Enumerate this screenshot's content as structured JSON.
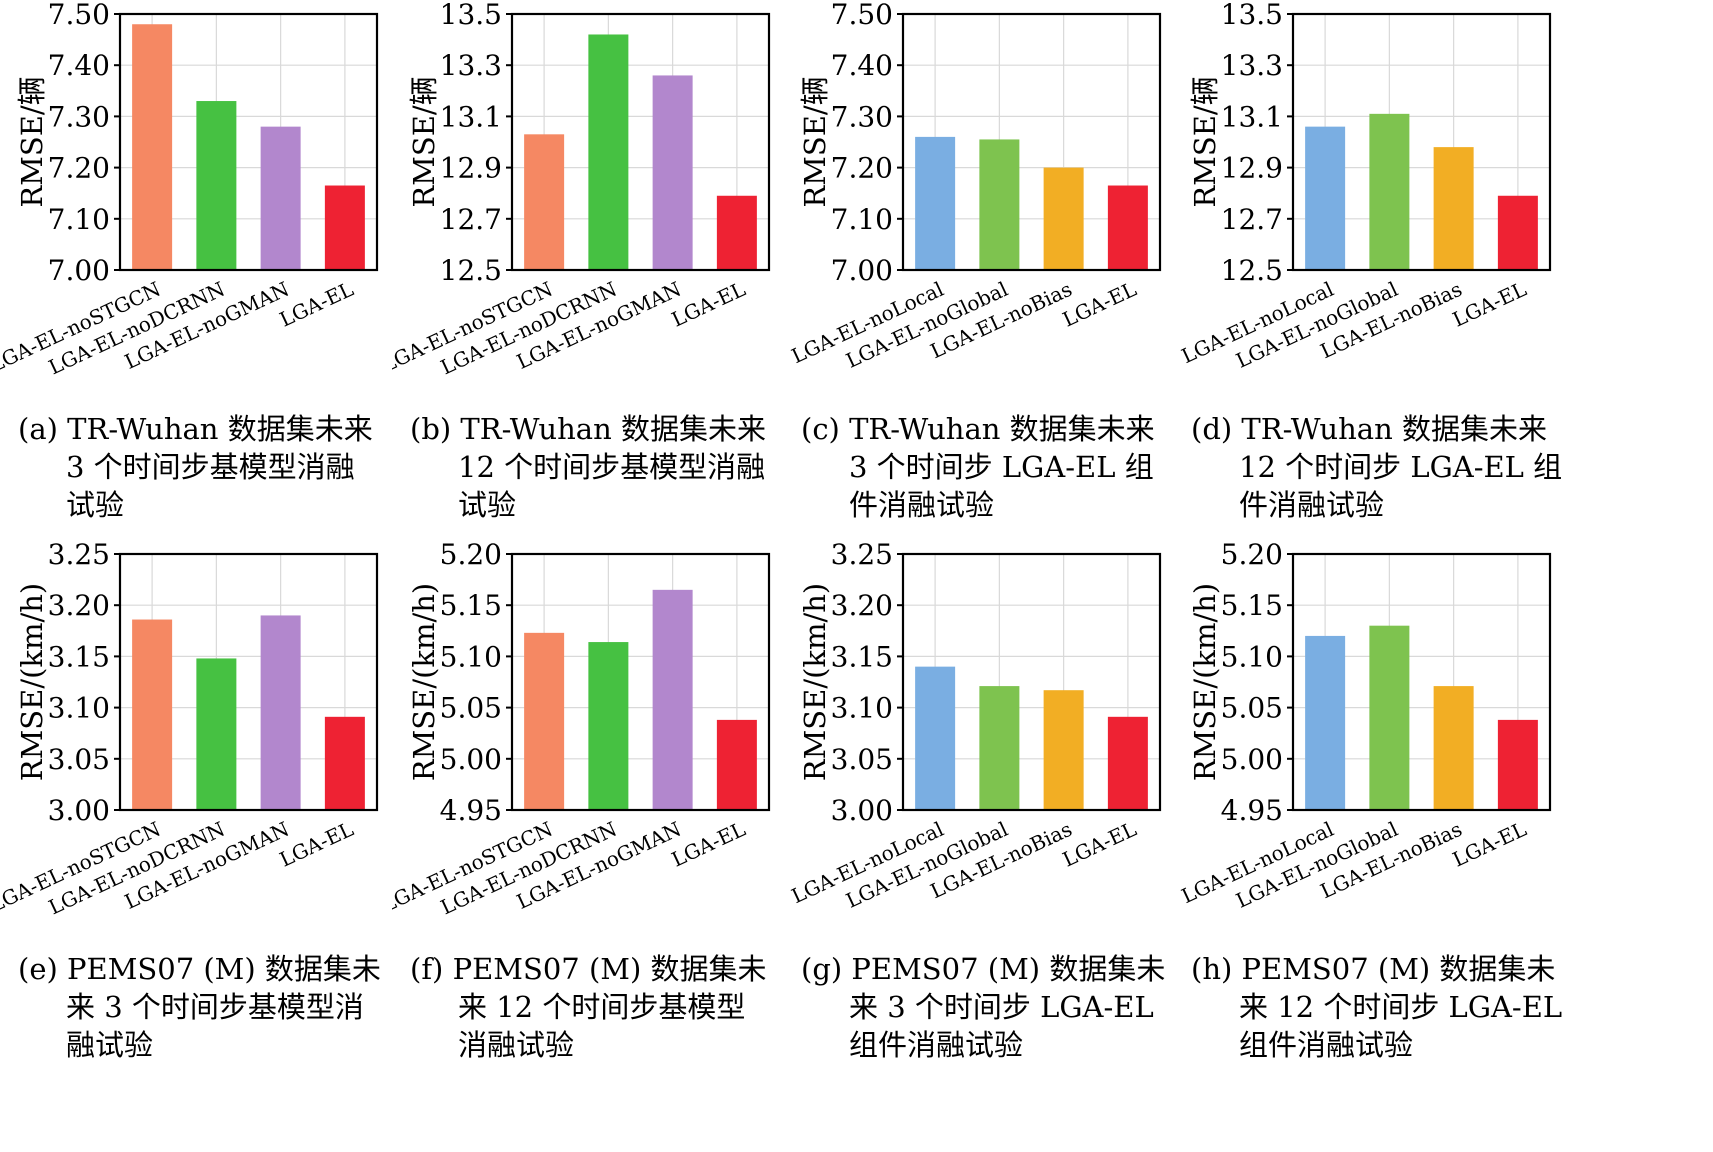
{
  "chart_data": [
    {
      "type": "bar",
      "categories": [
        "LGA-EL-noSTGCN",
        "LGA-EL-noDCRNN",
        "LGA-EL-noGMAN",
        "LGA-EL"
      ],
      "values": [
        7.48,
        7.33,
        7.28,
        7.165
      ],
      "colors": [
        "#f58863",
        "#46c142",
        "#b287cd",
        "#ee2233"
      ],
      "ylabel": "RMSE/辆",
      "ylim": [
        7.0,
        7.5
      ],
      "yticks": [
        "7.00",
        "7.10",
        "7.20",
        "7.30",
        "7.40",
        "7.50"
      ],
      "grid": true,
      "caption": [
        "(a) TR-Wuhan 数据集未来",
        "3 个时间步基模型消融",
        "试验"
      ]
    },
    {
      "type": "bar",
      "categories": [
        "LGA-EL-noSTGCN",
        "LGA-EL-noDCRNN",
        "LGA-EL-noGMAN",
        "LGA-EL"
      ],
      "values": [
        13.03,
        13.42,
        13.26,
        12.79
      ],
      "colors": [
        "#f58863",
        "#46c142",
        "#b287cd",
        "#ee2233"
      ],
      "ylabel": "RMSE/辆",
      "ylim": [
        12.5,
        13.5
      ],
      "yticks": [
        "12.5",
        "12.7",
        "12.9",
        "13.1",
        "13.3",
        "13.5"
      ],
      "grid": true,
      "caption": [
        "(b) TR-Wuhan 数据集未来",
        "12 个时间步基模型消融",
        "试验"
      ]
    },
    {
      "type": "bar",
      "categories": [
        "LGA-EL-noLocal",
        "LGA-EL-noGlobal",
        "LGA-EL-noBias",
        "LGA-EL"
      ],
      "values": [
        7.26,
        7.255,
        7.2,
        7.165
      ],
      "colors": [
        "#7aaee2",
        "#7ec34f",
        "#f2ae24",
        "#ee2233"
      ],
      "ylabel": "RMSE/辆",
      "ylim": [
        7.0,
        7.5
      ],
      "yticks": [
        "7.00",
        "7.10",
        "7.20",
        "7.30",
        "7.40",
        "7.50"
      ],
      "grid": true,
      "caption": [
        "(c) TR-Wuhan 数据集未来",
        "3 个时间步 LGA-EL 组",
        "件消融试验"
      ]
    },
    {
      "type": "bar",
      "categories": [
        "LGA-EL-noLocal",
        "LGA-EL-noGlobal",
        "LGA-EL-noBias",
        "LGA-EL"
      ],
      "values": [
        13.06,
        13.11,
        12.98,
        12.79
      ],
      "colors": [
        "#7aaee2",
        "#7ec34f",
        "#f2ae24",
        "#ee2233"
      ],
      "ylabel": "RMSE/辆",
      "ylim": [
        12.5,
        13.5
      ],
      "yticks": [
        "12.5",
        "12.7",
        "12.9",
        "13.1",
        "13.3",
        "13.5"
      ],
      "grid": true,
      "caption": [
        "(d) TR-Wuhan 数据集未来",
        "12 个时间步 LGA-EL 组",
        "件消融试验"
      ]
    },
    {
      "type": "bar",
      "categories": [
        "LGA-EL-noSTGCN",
        "LGA-EL-noDCRNN",
        "LGA-EL-noGMAN",
        "LGA-EL"
      ],
      "values": [
        3.186,
        3.148,
        3.19,
        3.091
      ],
      "colors": [
        "#f58863",
        "#46c142",
        "#b287cd",
        "#ee2233"
      ],
      "ylabel": "RMSE/(km/h)",
      "ylim": [
        3.0,
        3.25
      ],
      "yticks": [
        "3.00",
        "3.05",
        "3.10",
        "3.15",
        "3.20",
        "3.25"
      ],
      "grid": true,
      "caption": [
        "(e) PEMS07 (M) 数据集未",
        "来 3 个时间步基模型消",
        "融试验"
      ]
    },
    {
      "type": "bar",
      "categories": [
        "LGA-EL-noSTGCN",
        "LGA-EL-noDCRNN",
        "LGA-EL-noGMAN",
        "LGA-EL"
      ],
      "values": [
        5.123,
        5.114,
        5.165,
        5.038
      ],
      "colors": [
        "#f58863",
        "#46c142",
        "#b287cd",
        "#ee2233"
      ],
      "ylabel": "RMSE/(km/h)",
      "ylim": [
        4.95,
        5.2
      ],
      "yticks": [
        "4.95",
        "5.00",
        "5.05",
        "5.10",
        "5.15",
        "5.20"
      ],
      "grid": true,
      "caption": [
        "(f) PEMS07 (M) 数据集未",
        "来 12 个时间步基模型",
        "消融试验"
      ]
    },
    {
      "type": "bar",
      "categories": [
        "LGA-EL-noLocal",
        "LGA-EL-noGlobal",
        "LGA-EL-noBias",
        "LGA-EL"
      ],
      "values": [
        3.14,
        3.121,
        3.117,
        3.091
      ],
      "colors": [
        "#7aaee2",
        "#7ec34f",
        "#f2ae24",
        "#ee2233"
      ],
      "ylabel": "RMSE/(km/h)",
      "ylim": [
        3.0,
        3.25
      ],
      "yticks": [
        "3.00",
        "3.05",
        "3.10",
        "3.15",
        "3.20",
        "3.25"
      ],
      "grid": true,
      "caption": [
        "(g) PEMS07 (M) 数据集未",
        "来 3 个时间步 LGA-EL",
        "组件消融试验"
      ]
    },
    {
      "type": "bar",
      "categories": [
        "LGA-EL-noLocal",
        "LGA-EL-noGlobal",
        "LGA-EL-noBias",
        "LGA-EL"
      ],
      "values": [
        5.12,
        5.13,
        5.071,
        5.038
      ],
      "colors": [
        "#7aaee2",
        "#7ec34f",
        "#f2ae24",
        "#ee2233"
      ],
      "ylabel": "RMSE/(km/h)",
      "ylim": [
        4.95,
        5.2
      ],
      "yticks": [
        "4.95",
        "5.00",
        "5.05",
        "5.10",
        "5.15",
        "5.20"
      ],
      "grid": true,
      "caption": [
        "(h) PEMS07 (M) 数据集未",
        "来 12 个时间步 LGA-EL",
        "组件消融试验"
      ]
    }
  ]
}
